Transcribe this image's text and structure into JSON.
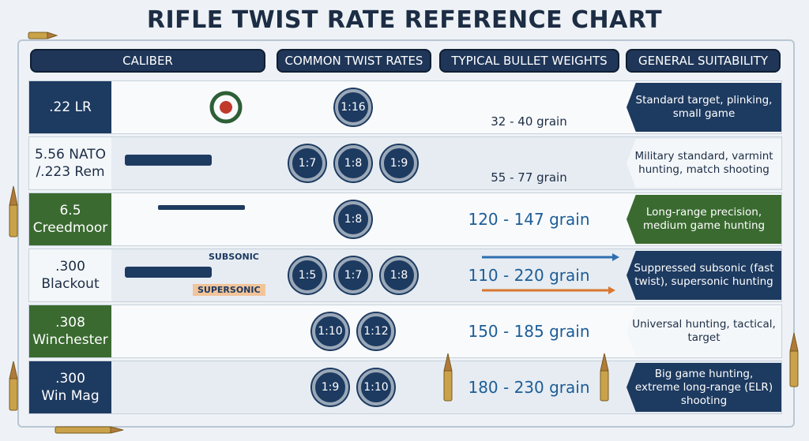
{
  "title": "RIFLE TWIST RATE REFERENCE CHART",
  "headers": [
    "CALIBER",
    "COMMON TWIST RATES",
    "TYPICAL BULLET WEIGHTS",
    "GENERAL SUITABILITY"
  ],
  "rows": [
    {
      "caliber": ".22 LR",
      "twist_rates": [
        "1:16"
      ],
      "bullet_weights": "32 - 40 grain",
      "suitability": "Standard target, plinking, small game"
    },
    {
      "caliber": "5.56 NATO\n/.223 Rem",
      "twist_rates": [
        "1:7",
        "1:8",
        "1:9"
      ],
      "bullet_weights": "55 - 77 grain",
      "suitability": "Military standard, varmint hunting, match shooting"
    },
    {
      "caliber": "6.5\nCreedmoor",
      "twist_rates": [
        "1:8"
      ],
      "bullet_weights": "120 - 147 grain",
      "suitability": "Long-range precision, medium game hunting"
    },
    {
      "caliber": ".300\nBlackout",
      "twist_rates": [
        "1:5",
        "1:7",
        "1:8"
      ],
      "bullet_weights": "110 - 220 grain",
      "suitability": "Suppressed subsonic (fast twist), supersonic hunting"
    },
    {
      "caliber": ".308\nWinchester",
      "twist_rates": [
        "1:10",
        "1:12"
      ],
      "bullet_weights": "150 - 185 grain",
      "suitability": "Universal hunting, tactical, target"
    },
    {
      "caliber": ".300\nWin Mag",
      "twist_rates": [
        "1:9",
        "1:10"
      ],
      "bullet_weights": "180 - 230 grain",
      "suitability": "Big game hunting, extreme long-range (ELR) shooting"
    }
  ],
  "annotations": {
    "subsonic": "SUBSONIC",
    "supersonic": "SUPERSONIC"
  }
}
